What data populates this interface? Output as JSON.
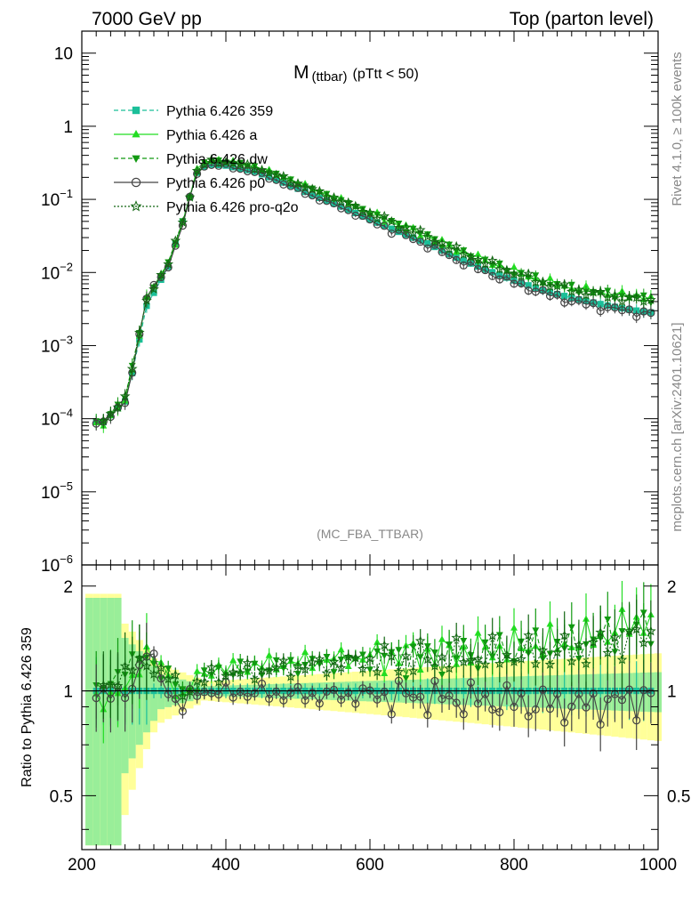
{
  "header": {
    "left": "7000 GeV pp",
    "right": "Top (parton level)"
  },
  "side": {
    "rivet": "Rivet 4.1.0, ≥ 100k events",
    "mcplots": "mcplots.cern.ch [arXiv:2401.10621]"
  },
  "chart_data": {
    "type": "line",
    "title": "M (ttbar) (pTtt < 50)",
    "title_main": "M",
    "title_sub": "(ttbar)",
    "title_tail": "(pTtt < 50)",
    "watermark": "(MC_FBA_TTBAR)",
    "xlabel": "",
    "ylabel_ratio": "Ratio to Pythia 6.426 359",
    "xlim": [
      200,
      1000
    ],
    "ylim_main": [
      1e-06,
      20
    ],
    "ylim_ratio": [
      0.35,
      2.3
    ],
    "x_ticks": [
      200,
      400,
      600,
      800,
      1000
    ],
    "x_tick_labels": [
      "200",
      "400",
      "600",
      "800",
      "1000"
    ],
    "y_ticks_main": [
      1e-06,
      1e-05,
      0.0001,
      0.001,
      0.01,
      0.1,
      1,
      10
    ],
    "y_tick_labels_main": [
      {
        "base": "10",
        "exp": "−6"
      },
      {
        "base": "10",
        "exp": "−5"
      },
      {
        "base": "10",
        "exp": "−4"
      },
      {
        "base": "10",
        "exp": "−3"
      },
      {
        "base": "10",
        "exp": "−2"
      },
      {
        "base": "10",
        "exp": "−1"
      },
      {
        "base": "1",
        "exp": ""
      },
      {
        "base": "10",
        "exp": ""
      }
    ],
    "y_ticks_ratio": [
      0.5,
      1,
      2
    ],
    "y_tick_labels_ratio": [
      "0.5",
      "1",
      "2"
    ],
    "reference": {
      "name": "Pythia 6.426 359",
      "knots_x": [
        210,
        230,
        262,
        290,
        320,
        340,
        362,
        380,
        400,
        440,
        480,
        520,
        560,
        600,
        640,
        680,
        720,
        760,
        800,
        840,
        880,
        920,
        960,
        995
      ],
      "knots_y": [
        9e-05,
        9e-05,
        0.00018,
        0.0035,
        0.012,
        0.05,
        0.27,
        0.3,
        0.29,
        0.24,
        0.17,
        0.115,
        0.08,
        0.053,
        0.036,
        0.025,
        0.016,
        0.011,
        0.0078,
        0.0057,
        0.0045,
        0.0037,
        0.0031,
        0.0028
      ]
    },
    "series": [
      {
        "name": "Pythia 6.426 359",
        "color": "#1bbf99",
        "marker": "square",
        "dash": "dashed",
        "ratio": [
          1,
          1,
          1,
          1,
          1,
          1,
          1,
          1,
          1,
          1,
          1,
          1,
          1,
          1,
          1,
          1,
          1,
          1,
          1,
          1,
          1,
          1,
          1,
          1
        ]
      },
      {
        "name": "Pythia 6.426 a",
        "color": "#22dd22",
        "marker": "triangle-up",
        "dash": "solid",
        "ratio": [
          0.95,
          0.95,
          1.0,
          1.3,
          1.1,
          0.95,
          1.1,
          1.16,
          1.15,
          1.18,
          1.2,
          1.22,
          1.24,
          1.25,
          1.27,
          1.28,
          1.3,
          1.32,
          1.34,
          1.36,
          1.38,
          1.45,
          1.55,
          1.65
        ]
      },
      {
        "name": "Pythia 6.426 dw",
        "color": "#119911",
        "marker": "triangle-down",
        "dash": "dashed",
        "ratio": [
          1.0,
          1.0,
          1.2,
          1.25,
          1.1,
          1.0,
          1.05,
          1.13,
          1.15,
          1.16,
          1.18,
          1.2,
          1.22,
          1.24,
          1.26,
          1.27,
          1.28,
          1.3,
          1.32,
          1.34,
          1.36,
          1.42,
          1.5,
          1.55
        ]
      },
      {
        "name": "Pythia 6.426 p0",
        "color": "#444444",
        "marker": "circle-open",
        "dash": "solid",
        "ratio": [
          1.0,
          1.0,
          0.95,
          1.3,
          1.0,
          0.9,
          1.0,
          1.0,
          0.99,
          0.99,
          0.98,
          0.97,
          0.97,
          0.98,
          0.97,
          0.96,
          0.95,
          0.94,
          0.93,
          0.92,
          0.91,
          0.92,
          0.95,
          0.97
        ]
      },
      {
        "name": "Pythia 6.426 pro-q2o",
        "color": "#116611",
        "marker": "star-open",
        "dash": "dotted",
        "ratio": [
          1.0,
          1.0,
          1.15,
          1.2,
          1.1,
          1.0,
          1.05,
          1.1,
          1.12,
          1.14,
          1.16,
          1.18,
          1.2,
          1.22,
          1.23,
          1.24,
          1.25,
          1.26,
          1.27,
          1.28,
          1.3,
          1.35,
          1.4,
          1.45
        ]
      }
    ],
    "colors": {
      "band_inner": "#99ee99",
      "band_outer": "#ffff99",
      "frame": "#000000"
    }
  }
}
